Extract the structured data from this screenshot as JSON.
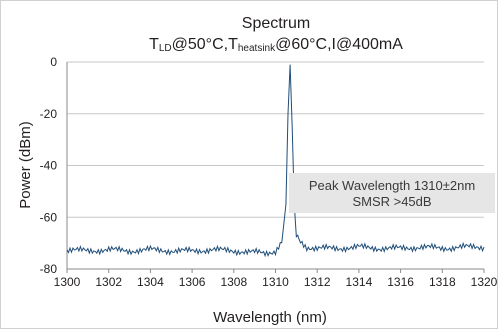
{
  "chart_data": {
    "type": "line",
    "title": "Spectrum",
    "subtitle_parts": {
      "p1": "T",
      "s1": "LD",
      "p2": "@50°C,T",
      "s2": "heatsink",
      "p3": "@60°C,I@400mA"
    },
    "xlabel": "Wavelength (nm)",
    "ylabel": "Power (dBm)",
    "xlim": [
      1300,
      1320
    ],
    "ylim": [
      -80,
      0
    ],
    "x_ticks": [
      "1300",
      "1302",
      "1304",
      "1306",
      "1308",
      "1310",
      "1312",
      "1314",
      "1316",
      "1318",
      "1320"
    ],
    "y_ticks": [
      "0",
      "-20",
      "-40",
      "-60",
      "-80"
    ],
    "grid": "horizontal",
    "line_color": "#1f4e79",
    "series": [
      {
        "x": [
          1300,
          1301,
          1302,
          1303,
          1304,
          1305,
          1306,
          1307,
          1308,
          1309,
          1309.5,
          1310,
          1310.3,
          1310.5,
          1310.6,
          1310.7,
          1310.8,
          1310.9,
          1311.0,
          1311.2,
          1311.5,
          1312,
          1313,
          1314,
          1315,
          1316,
          1317,
          1318,
          1319,
          1320
        ],
        "y": [
          -72.5,
          -73,
          -72.5,
          -73,
          -72.5,
          -73,
          -73,
          -72.5,
          -73,
          -73.5,
          -74,
          -73,
          -70,
          -55,
          -20,
          -1,
          -25,
          -55,
          -67,
          -70,
          -71.5,
          -72,
          -72,
          -71.5,
          -72,
          -72,
          -71.5,
          -72,
          -71.5,
          -71.5
        ]
      }
    ],
    "annotation": {
      "line1": "Peak Wavelength 1310±2nm",
      "line2": "SMSR >45dB"
    }
  }
}
